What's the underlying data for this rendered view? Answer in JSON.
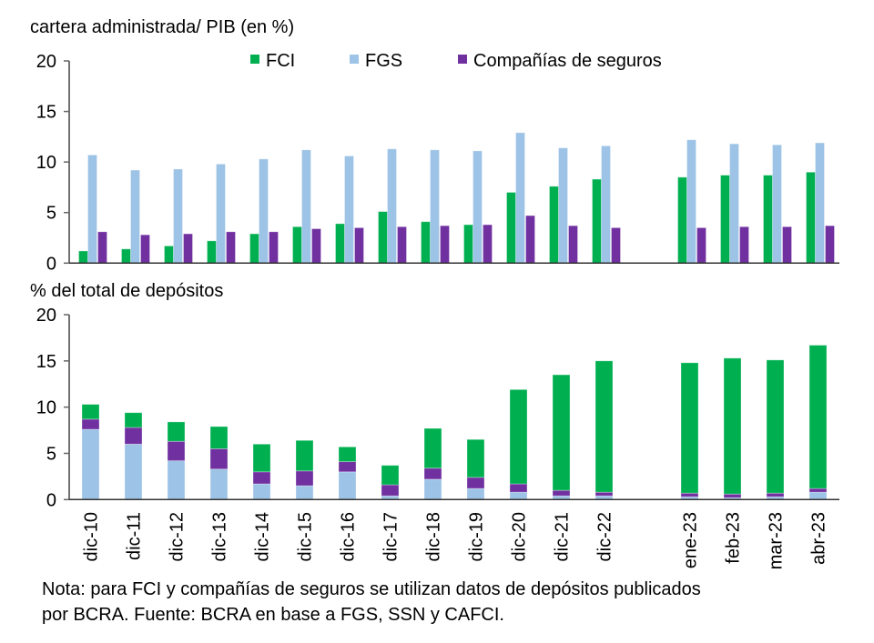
{
  "chart_data": [
    {
      "type": "bar",
      "title": "cartera administrada/ PIB (en %)",
      "categories": [
        "dic-10",
        "dic-11",
        "dic-12",
        "dic-13",
        "dic-14",
        "dic-15",
        "dic-16",
        "dic-17",
        "dic-18",
        "dic-19",
        "dic-20",
        "dic-21",
        "dic-22",
        "",
        "ene-23",
        "feb-23",
        "mar-23",
        "abr-23"
      ],
      "ylim": [
        0,
        20
      ],
      "yticks": [
        0,
        5,
        10,
        15,
        20
      ],
      "legend": "top",
      "grid": false,
      "series": [
        {
          "name": "FCI",
          "color": "#00B050",
          "values": [
            1.2,
            1.4,
            1.7,
            2.2,
            2.9,
            3.6,
            3.9,
            5.1,
            4.1,
            3.8,
            7.0,
            7.6,
            8.3,
            null,
            8.5,
            8.7,
            8.7,
            9.0
          ]
        },
        {
          "name": "FGS",
          "color": "#9DC3E6",
          "values": [
            10.7,
            9.2,
            9.3,
            9.8,
            10.3,
            11.2,
            10.6,
            11.3,
            11.2,
            11.1,
            12.9,
            11.4,
            11.6,
            null,
            12.2,
            11.8,
            11.7,
            11.9
          ]
        },
        {
          "name": "Compañías de seguros",
          "color": "#7030A0",
          "values": [
            3.1,
            2.8,
            2.9,
            3.1,
            3.1,
            3.4,
            3.5,
            3.6,
            3.7,
            3.8,
            4.7,
            3.7,
            3.5,
            null,
            3.5,
            3.6,
            3.6,
            3.7
          ]
        }
      ]
    },
    {
      "type": "bar",
      "stacked": true,
      "title": "% del total de depósitos",
      "categories": [
        "dic-10",
        "dic-11",
        "dic-12",
        "dic-13",
        "dic-14",
        "dic-15",
        "dic-16",
        "dic-17",
        "dic-18",
        "dic-19",
        "dic-20",
        "dic-21",
        "dic-22",
        "",
        "ene-23",
        "feb-23",
        "mar-23",
        "abr-23"
      ],
      "ylim": [
        0,
        20
      ],
      "yticks": [
        0,
        5,
        10,
        15,
        20
      ],
      "grid": false,
      "series": [
        {
          "name": "FGS",
          "color": "#9DC3E6",
          "values": [
            7.6,
            6.0,
            4.2,
            3.3,
            1.7,
            1.5,
            3.0,
            0.4,
            2.2,
            1.2,
            0.8,
            0.4,
            0.4,
            null,
            0.3,
            0.2,
            0.3,
            0.8
          ]
        },
        {
          "name": "Compañías de seguros",
          "color": "#7030A0",
          "values": [
            1.1,
            1.8,
            2.1,
            2.2,
            1.3,
            1.6,
            1.1,
            1.2,
            1.2,
            1.2,
            0.9,
            0.6,
            0.4,
            null,
            0.4,
            0.4,
            0.4,
            0.4
          ]
        },
        {
          "name": "FCI",
          "color": "#00B050",
          "values": [
            1.6,
            1.6,
            2.1,
            2.4,
            3.0,
            3.3,
            1.6,
            2.1,
            4.3,
            4.1,
            10.2,
            12.5,
            14.2,
            null,
            14.1,
            14.7,
            14.4,
            15.5
          ]
        }
      ]
    }
  ],
  "notes": {
    "line1": "Nota: para FCI y compañías de seguros se utilizan datos de depósitos publicados",
    "line2": "por BCRA. Fuente: BCRA en base a FGS, SSN y CAFCI."
  }
}
